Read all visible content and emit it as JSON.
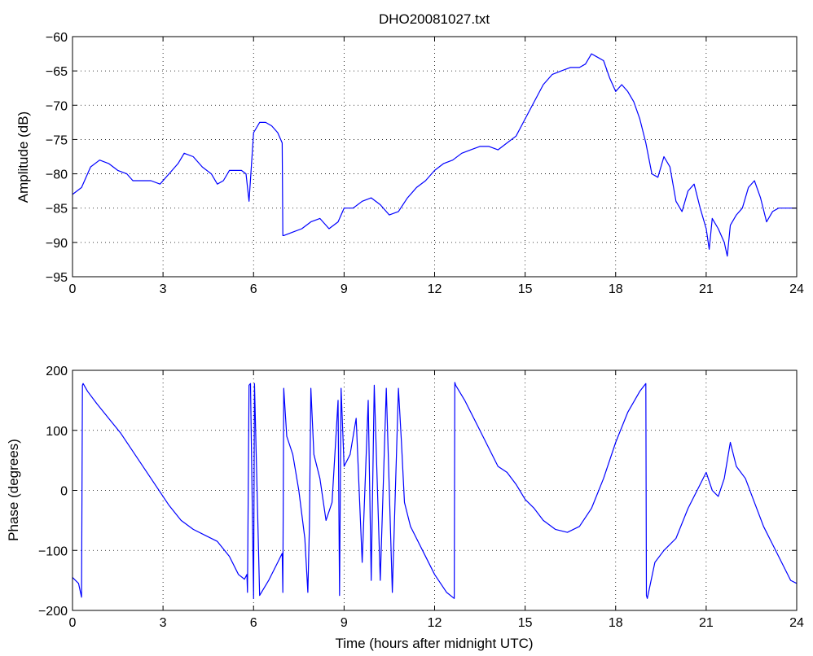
{
  "figure_title": "DHO20081027.txt",
  "line_color": "#0000ff",
  "chart_data": [
    {
      "type": "line",
      "title": "DHO20081027.txt",
      "xlabel": "",
      "ylabel": "Amplitude (dB)",
      "xlim": [
        0,
        24
      ],
      "ylim": [
        -95,
        -60
      ],
      "xticks": [
        0,
        3,
        6,
        9,
        12,
        15,
        18,
        21,
        24
      ],
      "yticks": [
        -95,
        -90,
        -85,
        -80,
        -75,
        -70,
        -65,
        -60
      ],
      "grid": true,
      "series": [
        {
          "x": [
            0,
            0.3,
            0.6,
            0.9,
            1.2,
            1.5,
            1.8,
            2.0,
            2.3,
            2.6,
            2.9,
            3.2,
            3.5,
            3.7,
            4.0,
            4.3,
            4.6,
            4.8,
            5.0,
            5.2,
            5.4,
            5.6,
            5.75,
            5.85,
            6.0,
            6.2,
            6.4,
            6.6,
            6.8,
            6.95,
            6.97,
            7.0,
            7.3,
            7.6,
            7.9,
            8.2,
            8.5,
            8.8,
            9.0,
            9.3,
            9.6,
            9.9,
            10.2,
            10.5,
            10.8,
            11.1,
            11.4,
            11.7,
            12.0,
            12.3,
            12.6,
            12.9,
            13.2,
            13.5,
            13.8,
            14.1,
            14.4,
            14.7,
            15.0,
            15.3,
            15.6,
            15.9,
            16.2,
            16.5,
            16.8,
            17.0,
            17.2,
            17.4,
            17.6,
            17.8,
            18.0,
            18.2,
            18.4,
            18.6,
            18.8,
            19.0,
            19.2,
            19.4,
            19.6,
            19.8,
            20.0,
            20.2,
            20.4,
            20.6,
            20.8,
            21.0,
            21.1,
            21.2,
            21.4,
            21.6,
            21.7,
            21.8,
            22.0,
            22.2,
            22.4,
            22.6,
            22.8,
            23.0,
            23.2,
            23.4,
            23.6,
            23.8,
            24.0
          ],
          "y": [
            -83,
            -82,
            -79,
            -78,
            -78.5,
            -79.5,
            -80,
            -81,
            -81,
            -81,
            -81.5,
            -80,
            -78.5,
            -77,
            -77.5,
            -79,
            -80,
            -81.5,
            -81,
            -79.5,
            -79.5,
            -79.5,
            -80,
            -84,
            -74,
            -72.5,
            -72.5,
            -73,
            -74,
            -75.5,
            -89,
            -89,
            -88.5,
            -88,
            -87,
            -86.5,
            -88,
            -87,
            -85,
            -85,
            -84,
            -83.5,
            -84.5,
            -86,
            -85.5,
            -83.5,
            -82,
            -81,
            -79.5,
            -78.5,
            -78,
            -77,
            -76.5,
            -76,
            -76,
            -76.5,
            -75.5,
            -74.5,
            -72,
            -69.5,
            -67,
            -65.5,
            -65,
            -64.5,
            -64.5,
            -64,
            -62.5,
            -63,
            -63.5,
            -66,
            -68,
            -67,
            -68,
            -69.5,
            -72,
            -75.5,
            -80,
            -80.5,
            -77.5,
            -79,
            -84,
            -85.5,
            -82.5,
            -81.5,
            -85,
            -88,
            -91,
            -86.5,
            -88,
            -90,
            -92,
            -87.5,
            -86,
            -85,
            -82,
            -81,
            -83.5,
            -87,
            -85.5,
            -85,
            -85,
            -85,
            -85
          ]
        }
      ]
    },
    {
      "type": "line",
      "title": "",
      "xlabel": "Time (hours after midnight UTC)",
      "ylabel": "Phase (degrees)",
      "xlim": [
        0,
        24
      ],
      "ylim": [
        -200,
        200
      ],
      "xticks": [
        0,
        3,
        6,
        9,
        12,
        15,
        18,
        21,
        24
      ],
      "yticks": [
        -200,
        -100,
        0,
        100,
        200
      ],
      "grid": true,
      "series": [
        {
          "x": [
            0,
            0.2,
            0.3,
            0.33,
            0.35,
            0.5,
            0.8,
            1.2,
            1.6,
            2.0,
            2.4,
            2.8,
            3.2,
            3.6,
            4.0,
            4.4,
            4.8,
            5.2,
            5.5,
            5.7,
            5.78,
            5.8,
            5.85,
            5.9,
            6.0,
            6.03,
            6.2,
            6.5,
            6.8,
            6.95,
            6.97,
            7.0,
            7.1,
            7.3,
            7.5,
            7.7,
            7.8,
            7.85,
            7.9,
            8.0,
            8.2,
            8.4,
            8.6,
            8.8,
            8.85,
            8.9,
            9.0,
            9.2,
            9.4,
            9.6,
            9.8,
            9.9,
            10.0,
            10.2,
            10.4,
            10.6,
            10.8,
            10.9,
            11.0,
            11.2,
            11.6,
            12.0,
            12.4,
            12.65,
            12.67,
            12.7,
            13.0,
            13.4,
            13.8,
            14.1,
            14.4,
            14.7,
            15.0,
            15.3,
            15.6,
            16.0,
            16.4,
            16.8,
            17.2,
            17.6,
            18.0,
            18.4,
            18.8,
            19.0,
            19.02,
            19.05,
            19.3,
            19.6,
            20.0,
            20.4,
            20.8,
            21.0,
            21.2,
            21.4,
            21.6,
            21.8,
            22.0,
            22.3,
            22.6,
            22.9,
            23.2,
            23.5,
            23.8,
            24.0
          ],
          "y": [
            -145,
            -155,
            -178,
            175,
            178,
            165,
            145,
            120,
            95,
            65,
            35,
            5,
            -25,
            -50,
            -65,
            -75,
            -85,
            -110,
            -140,
            -148,
            -140,
            -170,
            175,
            178,
            -180,
            178,
            -175,
            -150,
            -120,
            -105,
            -170,
            170,
            90,
            60,
            0,
            -80,
            -170,
            -60,
            170,
            60,
            20,
            -50,
            -20,
            150,
            -175,
            170,
            40,
            60,
            120,
            -120,
            150,
            -150,
            175,
            -150,
            170,
            -170,
            170,
            80,
            -20,
            -60,
            -100,
            -140,
            -170,
            -180,
            180,
            175,
            150,
            110,
            70,
            40,
            30,
            10,
            -15,
            -30,
            -50,
            -65,
            -70,
            -60,
            -30,
            20,
            80,
            130,
            165,
            178,
            -175,
            -180,
            -120,
            -100,
            -80,
            -30,
            10,
            30,
            0,
            -10,
            20,
            80,
            40,
            20,
            -20,
            -60,
            -90,
            -120,
            -150,
            -155
          ]
        }
      ]
    }
  ]
}
